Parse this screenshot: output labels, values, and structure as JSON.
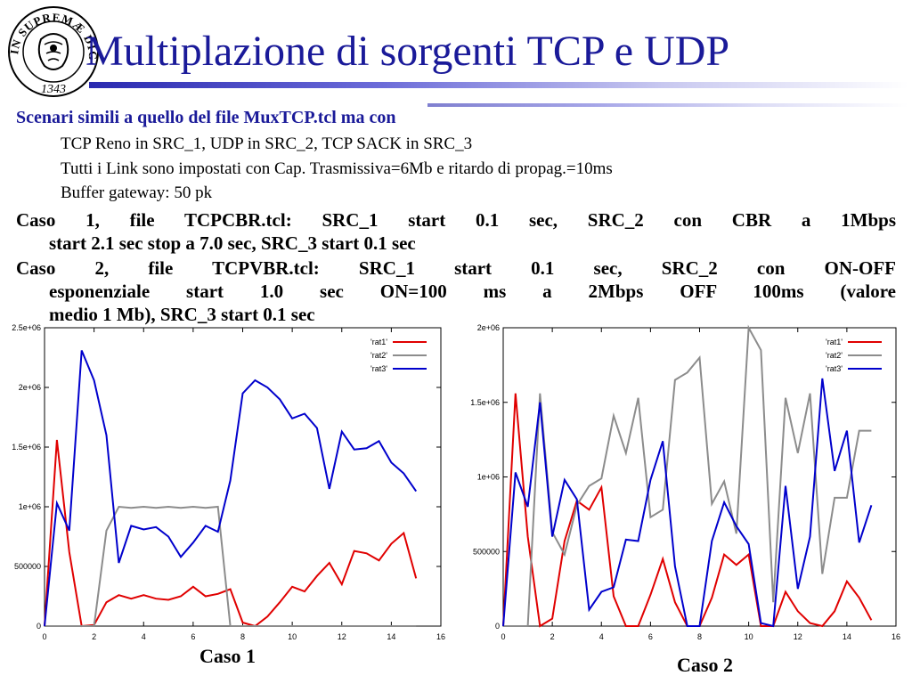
{
  "slide": {
    "title": "Multiplazione di sorgenti TCP e UDP",
    "logo": {
      "text": "IN SUPREMÆ DIGNITATIS",
      "year": "1343"
    },
    "bullet1": "Scenari simili a quello del file MuxTCP.tcl ma con",
    "sub_items": [
      "TCP Reno in SRC_1, UDP in SRC_2, TCP SACK in SRC_3",
      "Tutti i Link sono impostati con Cap. Trasmissiva=6Mb e ritardo di propag.=10ms",
      "Buffer gateway: 50 pk"
    ],
    "case1": {
      "line1": "Caso 1, file TCPCBR.tcl: SRC_1 start 0.1 sec, SRC_2 con CBR a 1Mbps",
      "line2": "start 2.1 sec stop a 7.0 sec, SRC_3 start 0.1 sec"
    },
    "case2": {
      "line1": "Caso 2, file TCPVBR.tcl: SRC_1 start 0.1 sec, SRC_2 con ON-OFF",
      "line2": "esponenziale start 1.0 sec ON=100 ms a 2Mbps OFF 100ms (valore",
      "line3": "medio 1 Mb), SRC_3 start 0.1 sec"
    },
    "caption1": "Caso 1",
    "caption2": "Caso 2",
    "colors": {
      "title": "#1a1a99",
      "rat1": "#e00000",
      "rat2": "#8c8c8c",
      "rat3": "#0000cc"
    }
  },
  "chart_data": [
    {
      "type": "line",
      "caption": "Caso 1",
      "xlim": [
        0,
        16
      ],
      "ylim": [
        0,
        2500000
      ],
      "xticks": [
        "0",
        "2",
        "4",
        "6",
        "8",
        "10",
        "12",
        "14",
        "16"
      ],
      "yticks": [
        "0",
        "500000",
        "1e+06",
        "1.5e+06",
        "2e+06",
        "2.5e+06"
      ],
      "x": [
        0,
        0.5,
        1,
        1.5,
        2,
        2.5,
        3,
        3.5,
        4,
        4.5,
        5,
        5.5,
        6,
        6.5,
        7,
        7.5,
        8,
        8.5,
        9,
        9.5,
        10,
        10.5,
        11,
        11.5,
        12,
        12.5,
        13,
        13.5,
        14,
        14.5,
        15
      ],
      "series": [
        {
          "name": "'rat1'",
          "values": [
            0,
            1560000,
            620000,
            0,
            10000,
            200000,
            260000,
            230000,
            260000,
            230000,
            220000,
            250000,
            330000,
            250000,
            270000,
            310000,
            30000,
            0,
            80000,
            200000,
            330000,
            290000,
            420000,
            530000,
            350000,
            630000,
            610000,
            550000,
            690000,
            780000,
            400000
          ]
        },
        {
          "name": "'rat2'",
          "values": [
            0,
            0,
            0,
            0,
            0,
            800000,
            1000000,
            990000,
            1000000,
            990000,
            1000000,
            990000,
            1000000,
            990000,
            1000000,
            0,
            0,
            0,
            0,
            0,
            0,
            0,
            0,
            0,
            0,
            0,
            0,
            0,
            0,
            0,
            0
          ]
        },
        {
          "name": "'rat3'",
          "values": [
            0,
            1030000,
            800000,
            2310000,
            2060000,
            1600000,
            530000,
            840000,
            810000,
            830000,
            750000,
            580000,
            700000,
            840000,
            790000,
            1220000,
            1950000,
            2060000,
            2000000,
            1900000,
            1740000,
            1780000,
            1660000,
            1150000,
            1630000,
            1480000,
            1490000,
            1550000,
            1370000,
            1280000,
            1130000
          ]
        }
      ]
    },
    {
      "type": "line",
      "caption": "Caso 2",
      "xlim": [
        0,
        16
      ],
      "ylim": [
        0,
        2000000
      ],
      "xticks": [
        "0",
        "2",
        "4",
        "6",
        "8",
        "10",
        "12",
        "14",
        "16"
      ],
      "yticks": [
        "0",
        "500000",
        "1e+06",
        "1.5e+06",
        "2e+06"
      ],
      "x": [
        0,
        0.5,
        1,
        1.5,
        2,
        2.5,
        3,
        3.5,
        4,
        4.5,
        5,
        5.5,
        6,
        6.5,
        7,
        7.5,
        8,
        8.5,
        9,
        9.5,
        10,
        10.5,
        11,
        11.5,
        12,
        12.5,
        13,
        13.5,
        14,
        14.5,
        15
      ],
      "series": [
        {
          "name": "'rat1'",
          "values": [
            0,
            1560000,
            600000,
            0,
            50000,
            570000,
            840000,
            780000,
            930000,
            200000,
            0,
            0,
            210000,
            450000,
            160000,
            0,
            0,
            190000,
            480000,
            410000,
            480000,
            0,
            0,
            230000,
            100000,
            20000,
            0,
            100000,
            300000,
            190000,
            40000
          ]
        },
        {
          "name": "'rat2'",
          "values": [
            0,
            0,
            0,
            1560000,
            630000,
            480000,
            810000,
            940000,
            990000,
            1410000,
            1160000,
            1530000,
            730000,
            780000,
            1650000,
            1700000,
            1800000,
            820000,
            970000,
            620000,
            2000000,
            1850000,
            160000,
            1530000,
            1160000,
            1560000,
            350000,
            860000,
            860000,
            1310000,
            1310000
          ]
        },
        {
          "name": "'rat3'",
          "values": [
            0,
            1030000,
            800000,
            1500000,
            600000,
            980000,
            850000,
            110000,
            230000,
            260000,
            580000,
            570000,
            980000,
            1240000,
            400000,
            0,
            0,
            570000,
            830000,
            670000,
            550000,
            20000,
            0,
            940000,
            250000,
            600000,
            1660000,
            1040000,
            1310000,
            560000,
            810000
          ]
        }
      ]
    }
  ]
}
